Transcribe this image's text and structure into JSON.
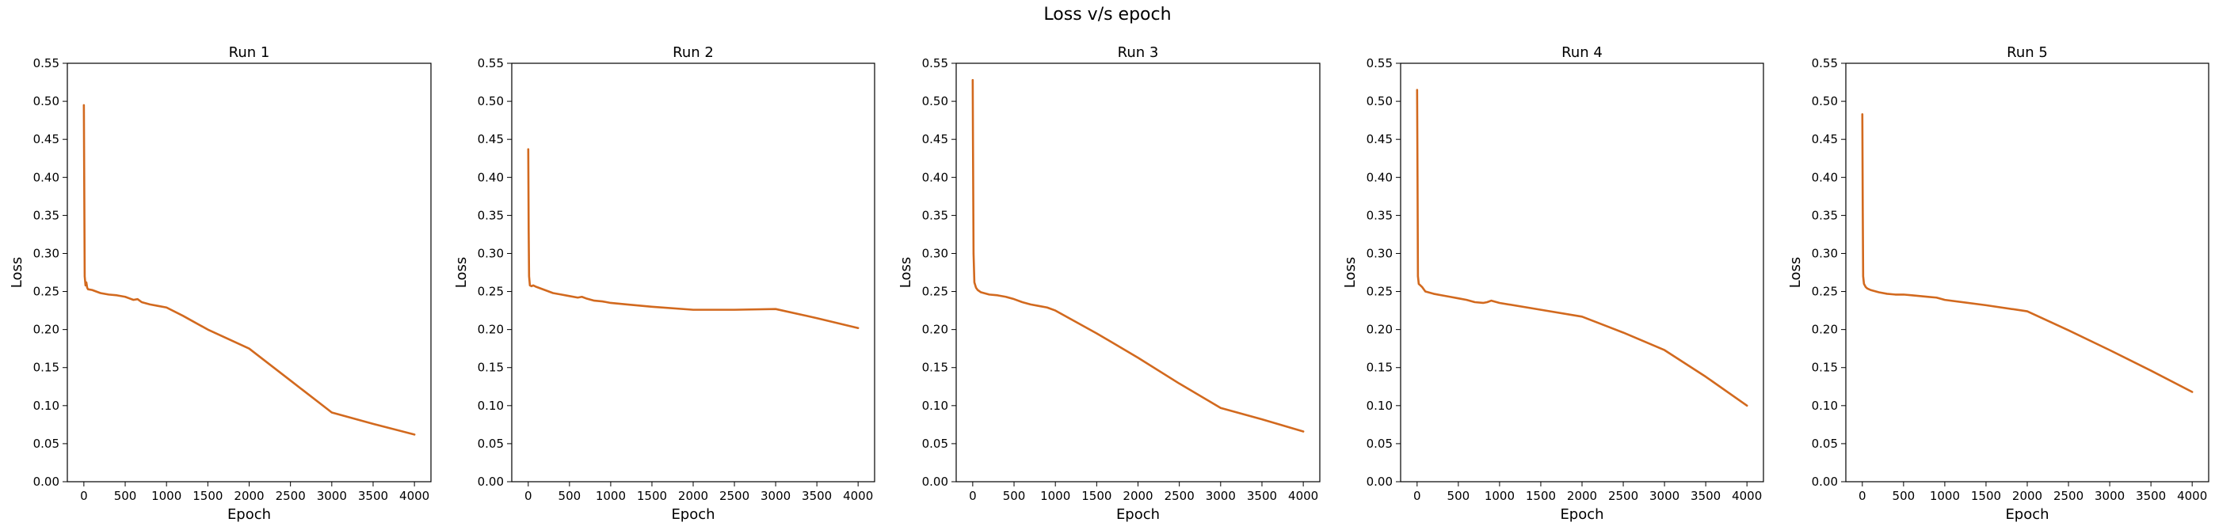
{
  "figure": {
    "title": "Loss v/s epoch",
    "line_color": "#d2691e"
  },
  "chart_data": [
    {
      "type": "line",
      "title": "Run 1",
      "xlabel": "Epoch",
      "ylabel": "Loss",
      "xlim": [
        -200,
        4200
      ],
      "ylim": [
        0.0,
        0.55
      ],
      "xticks": [
        0,
        500,
        1000,
        1500,
        2000,
        2500,
        3000,
        3500,
        4000
      ],
      "yticks": [
        0.0,
        0.05,
        0.1,
        0.15,
        0.2,
        0.25,
        0.3,
        0.35,
        0.4,
        0.45,
        0.5,
        0.55
      ],
      "grid": false,
      "series": [
        {
          "x": [
            0,
            5,
            10,
            20,
            30,
            40,
            50,
            100,
            200,
            300,
            400,
            500,
            550,
            600,
            650,
            700,
            800,
            900,
            1000,
            1200,
            1500,
            2000,
            2500,
            3000,
            3500,
            4000
          ],
          "y": [
            0.495,
            0.38,
            0.27,
            0.258,
            0.262,
            0.255,
            0.253,
            0.252,
            0.248,
            0.246,
            0.245,
            0.243,
            0.241,
            0.239,
            0.24,
            0.236,
            0.233,
            0.231,
            0.229,
            0.218,
            0.2,
            0.175,
            0.133,
            0.091,
            0.076,
            0.062
          ]
        }
      ]
    },
    {
      "type": "line",
      "title": "Run 2",
      "xlabel": "Epoch",
      "ylabel": "Loss",
      "xlim": [
        -200,
        4200
      ],
      "ylim": [
        0.0,
        0.55
      ],
      "xticks": [
        0,
        500,
        1000,
        1500,
        2000,
        2500,
        3000,
        3500,
        4000
      ],
      "yticks": [
        0.0,
        0.05,
        0.1,
        0.15,
        0.2,
        0.25,
        0.3,
        0.35,
        0.4,
        0.45,
        0.5,
        0.55
      ],
      "grid": false,
      "series": [
        {
          "x": [
            0,
            5,
            10,
            20,
            40,
            60,
            100,
            200,
            300,
            400,
            500,
            600,
            650,
            700,
            800,
            900,
            1000,
            1200,
            1500,
            2000,
            2500,
            3000,
            3500,
            4000
          ],
          "y": [
            0.437,
            0.33,
            0.27,
            0.258,
            0.257,
            0.258,
            0.256,
            0.252,
            0.248,
            0.246,
            0.244,
            0.242,
            0.243,
            0.241,
            0.238,
            0.237,
            0.235,
            0.233,
            0.23,
            0.226,
            0.226,
            0.227,
            0.215,
            0.202
          ]
        }
      ]
    },
    {
      "type": "line",
      "title": "Run 3",
      "xlabel": "Epoch",
      "ylabel": "Loss",
      "xlim": [
        -200,
        4200
      ],
      "ylim": [
        0.0,
        0.55
      ],
      "xticks": [
        0,
        500,
        1000,
        1500,
        2000,
        2500,
        3000,
        3500,
        4000
      ],
      "yticks": [
        0.0,
        0.05,
        0.1,
        0.15,
        0.2,
        0.25,
        0.3,
        0.35,
        0.4,
        0.45,
        0.5,
        0.55
      ],
      "grid": false,
      "series": [
        {
          "x": [
            0,
            3,
            10,
            20,
            40,
            60,
            100,
            200,
            300,
            400,
            500,
            600,
            700,
            800,
            900,
            1000,
            1500,
            2000,
            2500,
            3000,
            3500,
            4000
          ],
          "y": [
            0.528,
            0.45,
            0.3,
            0.262,
            0.255,
            0.252,
            0.249,
            0.246,
            0.245,
            0.243,
            0.24,
            0.236,
            0.233,
            0.231,
            0.229,
            0.225,
            0.195,
            0.163,
            0.129,
            0.097,
            0.082,
            0.066
          ]
        }
      ]
    },
    {
      "type": "line",
      "title": "Run 4",
      "xlabel": "Epoch",
      "ylabel": "Loss",
      "xlim": [
        -200,
        4200
      ],
      "ylim": [
        0.0,
        0.55
      ],
      "xticks": [
        0,
        500,
        1000,
        1500,
        2000,
        2500,
        3000,
        3500,
        4000
      ],
      "yticks": [
        0.0,
        0.05,
        0.1,
        0.15,
        0.2,
        0.25,
        0.3,
        0.35,
        0.4,
        0.45,
        0.5,
        0.55
      ],
      "grid": false,
      "series": [
        {
          "x": [
            0,
            5,
            10,
            20,
            40,
            60,
            100,
            200,
            300,
            400,
            500,
            600,
            700,
            800,
            850,
            900,
            1000,
            1500,
            2000,
            2500,
            3000,
            3500,
            4000
          ],
          "y": [
            0.515,
            0.4,
            0.27,
            0.26,
            0.258,
            0.256,
            0.25,
            0.247,
            0.245,
            0.243,
            0.241,
            0.239,
            0.236,
            0.235,
            0.236,
            0.238,
            0.235,
            0.226,
            0.217,
            0.196,
            0.173,
            0.138,
            0.1
          ]
        }
      ]
    },
    {
      "type": "line",
      "title": "Run 5",
      "xlabel": "Epoch",
      "ylabel": "Loss",
      "xlim": [
        -200,
        4200
      ],
      "ylim": [
        0.0,
        0.55
      ],
      "xticks": [
        0,
        500,
        1000,
        1500,
        2000,
        2500,
        3000,
        3500,
        4000
      ],
      "yticks": [
        0.0,
        0.05,
        0.1,
        0.15,
        0.2,
        0.25,
        0.3,
        0.35,
        0.4,
        0.45,
        0.5,
        0.55
      ],
      "grid": false,
      "series": [
        {
          "x": [
            0,
            5,
            10,
            20,
            40,
            60,
            100,
            200,
            300,
            400,
            500,
            600,
            700,
            800,
            900,
            1000,
            1500,
            2000,
            2500,
            3000,
            3500,
            4000
          ],
          "y": [
            0.483,
            0.36,
            0.27,
            0.26,
            0.256,
            0.254,
            0.252,
            0.249,
            0.247,
            0.246,
            0.246,
            0.245,
            0.244,
            0.243,
            0.242,
            0.239,
            0.232,
            0.224,
            0.199,
            0.173,
            0.146,
            0.118
          ]
        }
      ]
    }
  ]
}
